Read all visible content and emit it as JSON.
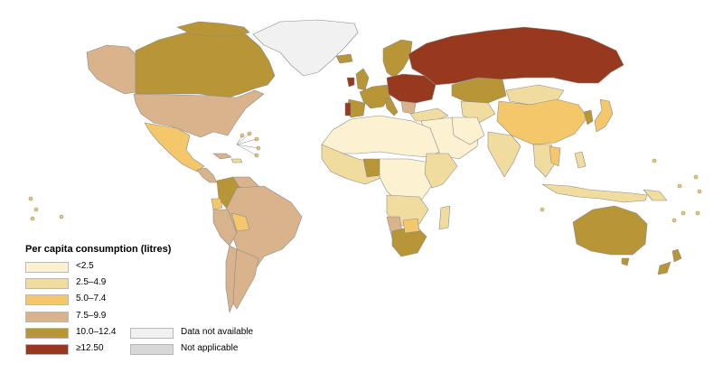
{
  "legend": {
    "title": "Per capita consumption (litres)",
    "classes": [
      {
        "label": "<2.5",
        "color": "#fcf2d2"
      },
      {
        "label": "2.5–4.9",
        "color": "#f1dca0"
      },
      {
        "label": "5.0–7.4",
        "color": "#f4c86a"
      },
      {
        "label": "7.5–9.9",
        "color": "#d9b38c"
      },
      {
        "label": "10.0–12.4",
        "color": "#b89536"
      },
      {
        "label": "≥12.50",
        "color": "#96391e"
      }
    ],
    "extra": [
      {
        "label": "Data not available",
        "color": "#f1f1f1"
      },
      {
        "label": "Not applicable",
        "color": "#d8d8d8"
      }
    ]
  }
}
